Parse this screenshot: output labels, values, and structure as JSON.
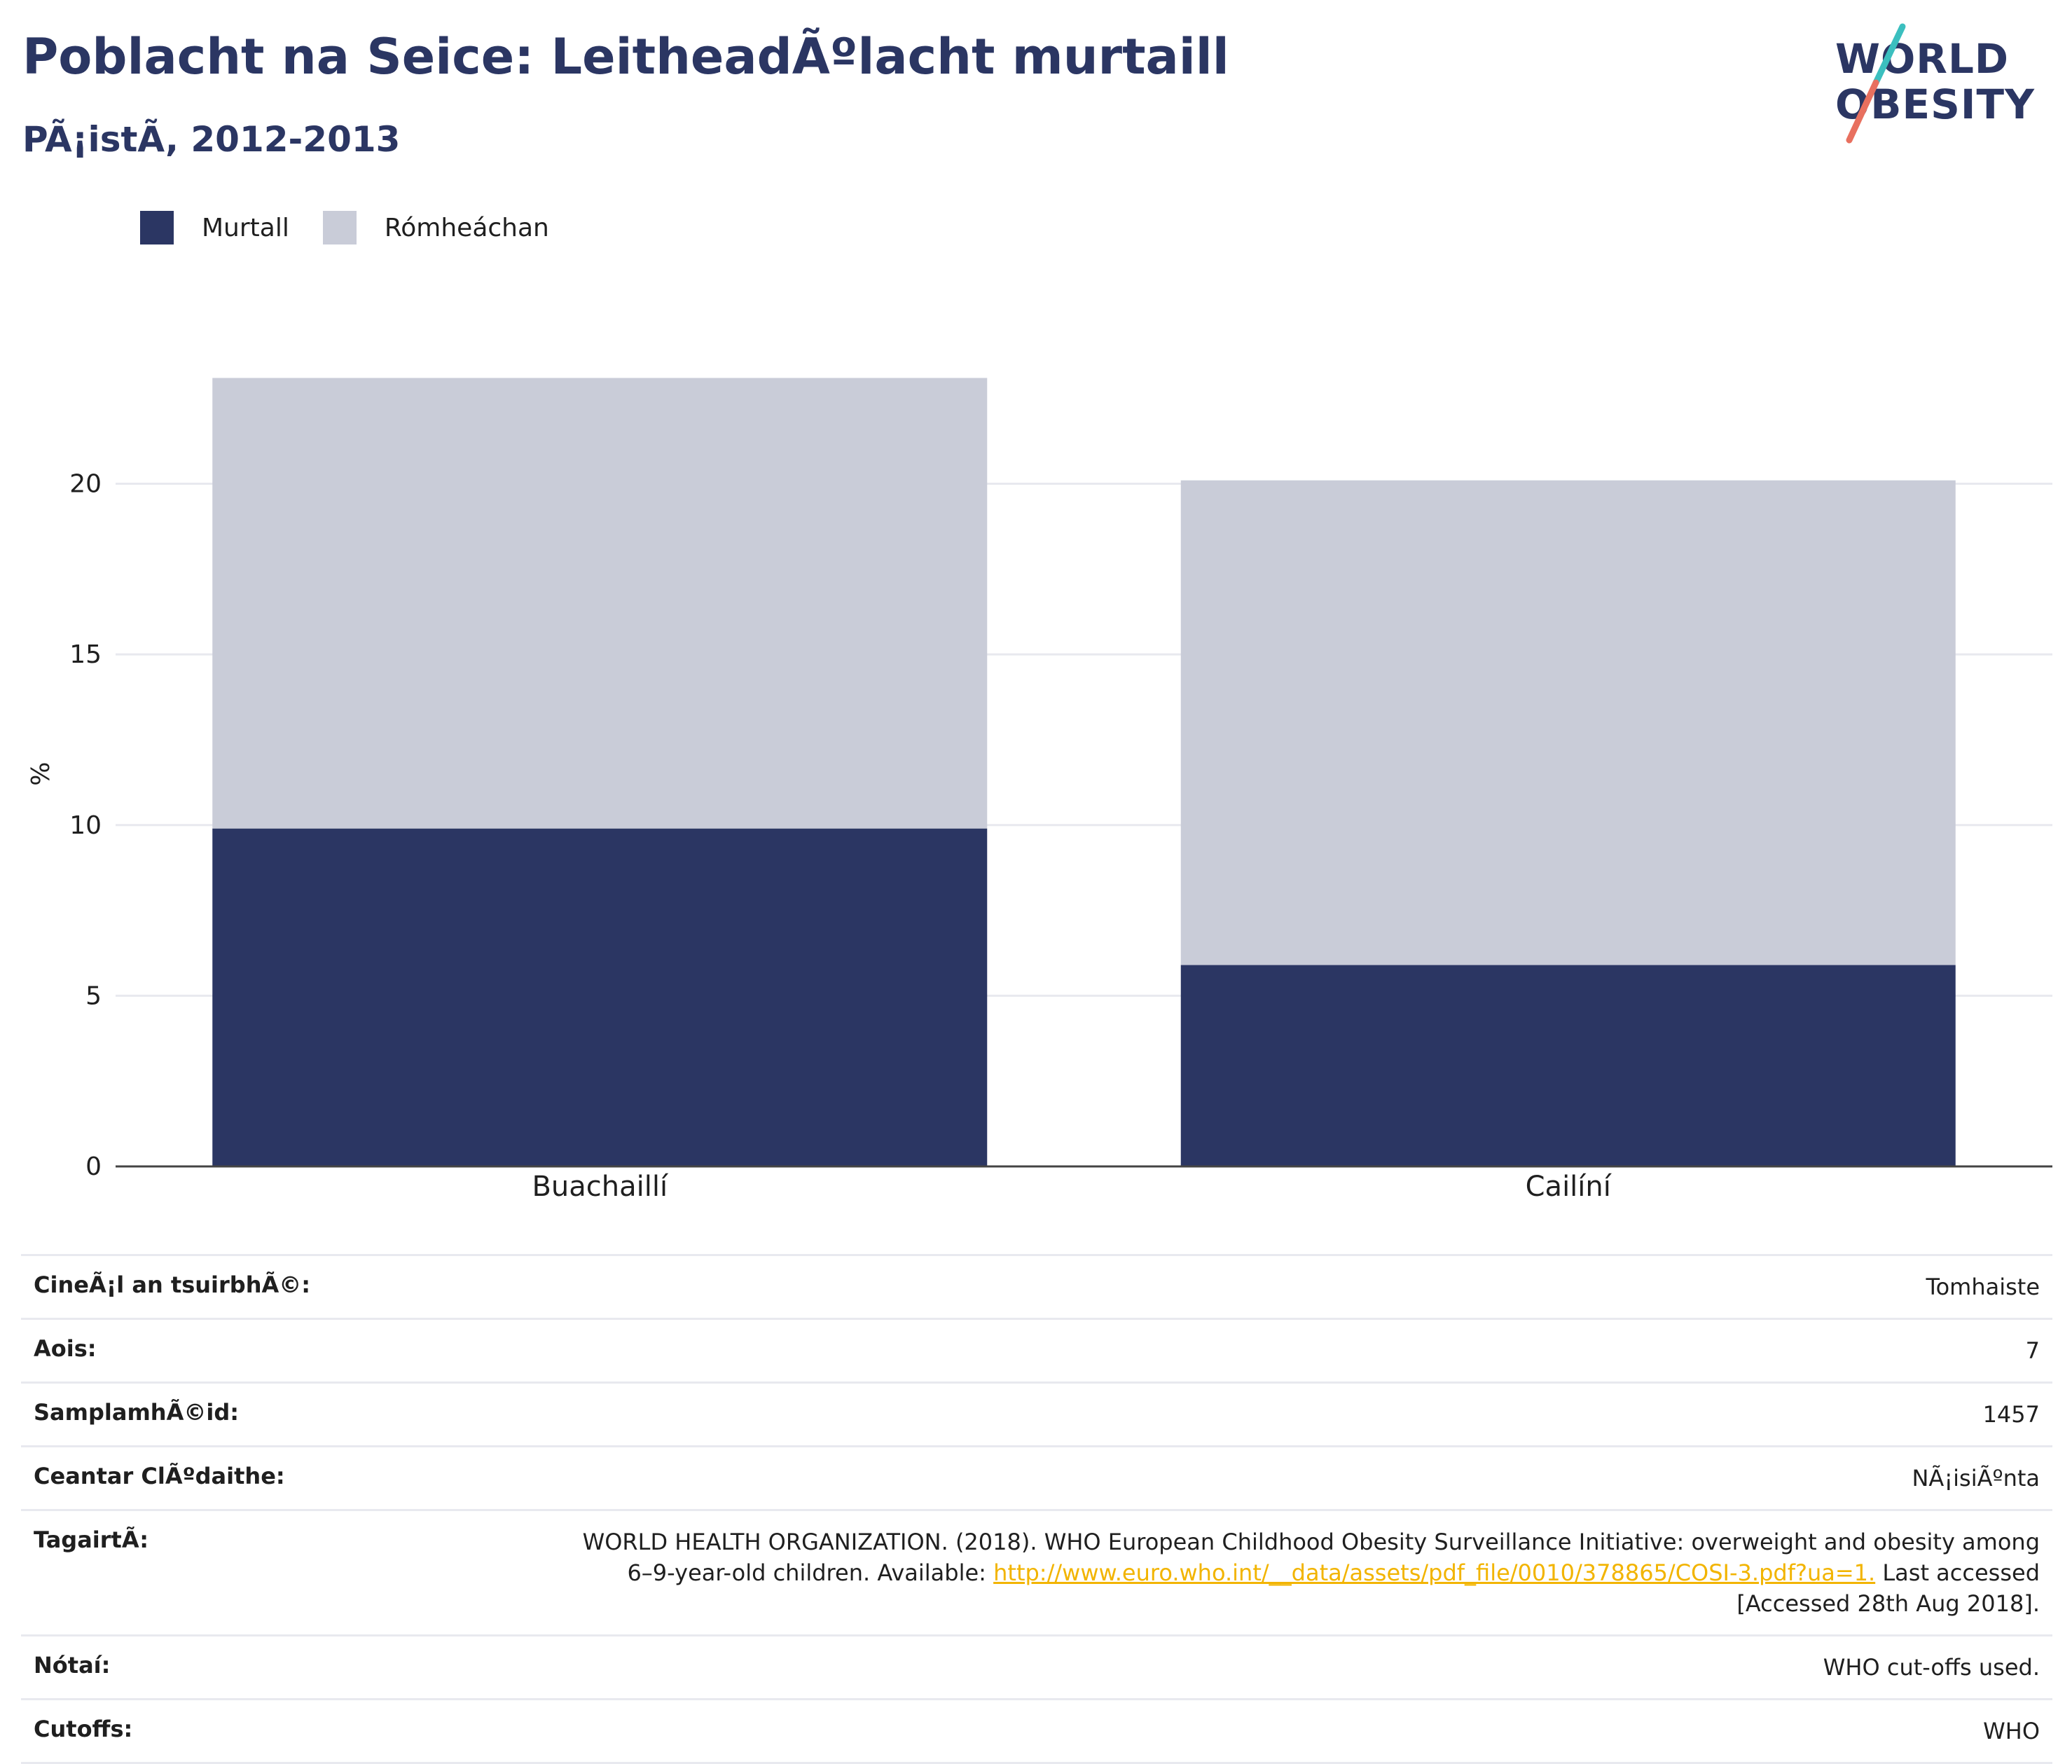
{
  "header": {
    "title": "Poblacht na Seice: LeitheadÃºlacht murtaill",
    "subtitle": "PÃ¡istÃ, 2012-2013"
  },
  "logo": {
    "line1": "WORLD",
    "line2": "OBESITY"
  },
  "legend": [
    {
      "label": "Murtall",
      "color": "#2b3663"
    },
    {
      "label": "Rómheáchan",
      "color": "#c9ccd8"
    }
  ],
  "chart_data": {
    "type": "bar",
    "stacked": true,
    "categories": [
      "Buachaillí",
      "Cailíní"
    ],
    "series": [
      {
        "name": "Murtall",
        "values": [
          9.9,
          5.9
        ],
        "color": "#2b3663"
      },
      {
        "name": "Rómheáchan",
        "values": [
          13.2,
          14.2
        ],
        "color": "#c9ccd8"
      }
    ],
    "ylabel": "%",
    "ylim": [
      0,
      23.5
    ],
    "yticks": [
      0,
      5,
      10,
      15,
      20
    ],
    "ytick_labels": [
      "0",
      "5",
      "10",
      "15",
      "20"
    ],
    "grid": true
  },
  "info": [
    {
      "key": "CineÃ¡l an tsuirbhÃ©:",
      "value": "Tomhaiste"
    },
    {
      "key": "Aois:",
      "value": "7"
    },
    {
      "key": "SamplamhÃ©id:",
      "value": "1457"
    },
    {
      "key": "Ceantar ClÃºdaithe:",
      "value": "NÃ¡isiÃºnta"
    }
  ],
  "reference": {
    "key": "TagairtÃ:",
    "line1": "WORLD HEALTH ORGANIZATION. (2018). WHO European Childhood Obesity Surveillance Initiative: overweight and obesity among",
    "line2_pre": "6–9-year-old children. Available: ",
    "link": "http://www.euro.who.int/__data/assets/pdf_file/0010/378865/COSI-3.pdf?ua=1.",
    "line2_post": " Last accessed",
    "line3": "[Accessed 28th Aug 2018]."
  },
  "notes": {
    "key": "Nótaí:",
    "value": "WHO cut-offs used."
  },
  "cutoffs": {
    "key": "Cutoffs:",
    "value": "WHO"
  }
}
